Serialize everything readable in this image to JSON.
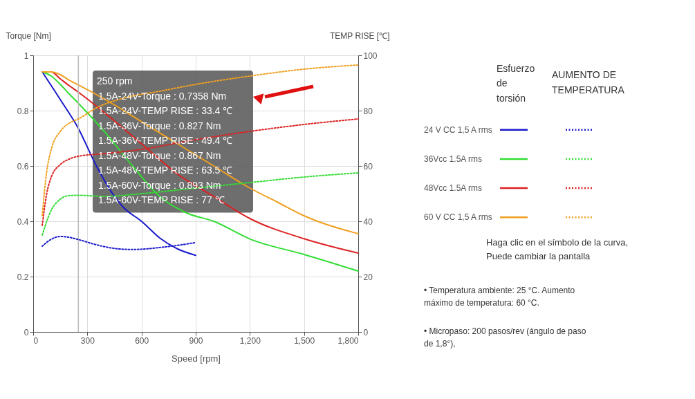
{
  "chart_data": {
    "type": "line",
    "xlabel": "Speed [rpm]",
    "ylabel": "Torque  [Nm]",
    "y2label": "TEMP RISE [℃]",
    "xlim": [
      0,
      1800
    ],
    "xticks": [
      0,
      300,
      600,
      900,
      {
        "value": 1200,
        "label": "1,200"
      },
      {
        "value": 1500,
        "label": "1,500"
      },
      {
        "value": 1800,
        "label": "1,800"
      }
    ],
    "ylim": [
      0,
      1
    ],
    "yticks": [
      {
        "value": 0,
        "label": "0"
      },
      0.2,
      0.4,
      0.6,
      0.8,
      {
        "value": 1,
        "label": "1"
      }
    ],
    "y2lim": [
      0,
      100
    ],
    "y2ticks": [
      0,
      20,
      40,
      60,
      80,
      100
    ],
    "grid": true,
    "legend": "right",
    "series": [
      {
        "name": "24 V CC 1,5 A rms",
        "color": "#1a1acc",
        "line_style": "solid",
        "x": [
          50,
          150,
          250,
          350,
          450,
          500,
          600,
          700,
          800,
          900
        ],
        "values": [
          0.94,
          0.84,
          0.7358,
          0.6,
          0.49,
          0.45,
          0.4,
          0.34,
          0.3,
          0.277
        ]
      },
      {
        "color": "#1a1acc",
        "line_style": "dotted",
        "axis": "y2",
        "x": [
          50,
          100,
          150,
          200,
          250,
          350,
          450,
          550,
          700,
          800,
          900
        ],
        "values": [
          31,
          33.5,
          34.5,
          34.2,
          33.4,
          31.5,
          30.2,
          29.8,
          30.5,
          31.3,
          32.3
        ]
      },
      {
        "name": "36Vcc 1.5A rms",
        "color": "#33dd33",
        "line_style": "solid",
        "x": [
          50,
          100,
          150,
          200,
          250,
          400,
          550,
          700,
          850,
          1000,
          1200,
          1500,
          1800
        ],
        "values": [
          0.94,
          0.925,
          0.895,
          0.86,
          0.827,
          0.72,
          0.6,
          0.49,
          0.43,
          0.4,
          0.336,
          0.28,
          0.22
        ]
      },
      {
        "color": "#33dd33",
        "line_style": "dotted",
        "axis": "y2",
        "x": [
          50,
          100,
          150,
          200,
          250,
          400,
          600,
          900,
          1200,
          1500,
          1800
        ],
        "values": [
          35,
          44,
          48,
          49.3,
          49.4,
          49,
          50,
          52,
          54,
          56,
          57.5
        ]
      },
      {
        "name": "48Vcc 1.5A rms",
        "color": "#dd2222",
        "line_style": "solid",
        "x": [
          50,
          100,
          150,
          200,
          250,
          400,
          600,
          800,
          1000,
          1200,
          1500,
          1800
        ],
        "values": [
          0.94,
          0.94,
          0.915,
          0.89,
          0.867,
          0.79,
          0.68,
          0.57,
          0.49,
          0.41,
          0.337,
          0.285
        ]
      },
      {
        "color": "#dd2222",
        "line_style": "dotted",
        "axis": "y2",
        "x": [
          50,
          75,
          100,
          150,
          200,
          250,
          400,
          600,
          900,
          1200,
          1500,
          1800
        ],
        "values": [
          38.5,
          50,
          56,
          60.5,
          62.5,
          63.5,
          64.5,
          66,
          69.5,
          72.5,
          75,
          77
        ]
      },
      {
        "name": "60 V CC 1,5 A rms",
        "color": "#f0a020",
        "line_style": "solid",
        "x": [
          50,
          100,
          150,
          200,
          250,
          400,
          600,
          800,
          1000,
          1200,
          1350,
          1500,
          1800
        ],
        "values": [
          0.94,
          0.94,
          0.93,
          0.91,
          0.893,
          0.84,
          0.76,
          0.68,
          0.6,
          0.52,
          0.47,
          0.42,
          0.355
        ]
      },
      {
        "color": "#f0a020",
        "line_style": "dotted",
        "axis": "y2",
        "x": [
          50,
          75,
          100,
          150,
          200,
          250,
          350,
          500,
          700,
          900,
          1200,
          1500,
          1800
        ],
        "values": [
          42,
          58,
          66,
          72.5,
          75.5,
          77,
          81,
          84.5,
          87,
          89.5,
          92.5,
          95,
          96.5
        ]
      }
    ],
    "ref_lines": [
      {
        "axis": "x",
        "value": 250,
        "label": "250 rpm",
        "color": "#bbbbbb"
      }
    ],
    "annotations": [
      "1.5A-24V-Torque : 0.7358 Nm",
      "1.5A-24V-TEMP RISE : 33.4 ℃",
      "1.5A-36V-Torque : 0.827 Nm",
      "1.5A-36V-TEMP RISE : 49.4 ℃",
      "1.5A-48V-Torque : 0.867 Nm",
      "1.5A-48V-TEMP RISE : 63.5 ℃",
      "1.5A-60V-Torque : 0.893 Nm",
      "1.5A-60V-TEMP RISE : 77 ℃",
      "Esfuerzo de torsión",
      "AUMENTO DE TEMPERATURA",
      "Haga clic en el símbolo de la curva, Puede cambiar la pantalla",
      "• Temperatura ambiente: 25 °C. Aumento máximo de temperatura: 60 °C.",
      "• Micropaso: 200 pasos/rev (ángulo de paso de 1,8°),"
    ]
  }
}
